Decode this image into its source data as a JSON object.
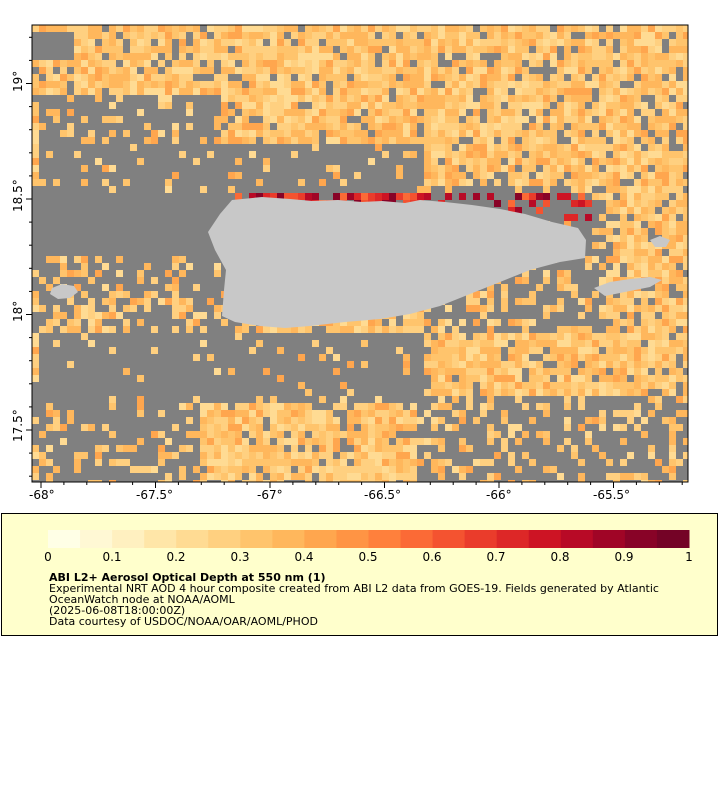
{
  "map": {
    "lon_range": [
      -68.05,
      -65.2
    ],
    "lat_range": [
      17.2,
      19.25
    ],
    "lon_ticks": [
      "-68°",
      "-67.5°",
      "-67°",
      "-66.5°",
      "-66°",
      "-65.5°"
    ],
    "lat_ticks": [
      "17.5°",
      "18°",
      "18.5°",
      "19°"
    ],
    "land_color": "#c8c8c8",
    "nodata_color": "#808080"
  },
  "colorbar": {
    "tick_labels": [
      "0",
      "0.1",
      "0.2",
      "0.3",
      "0.4",
      "0.5",
      "0.6",
      "0.7",
      "0.8",
      "0.9",
      "1"
    ],
    "colors": [
      "#ffffe6",
      "#fff8d4",
      "#fff0c0",
      "#ffe6a8",
      "#ffdb93",
      "#ffd080",
      "#ffc46c",
      "#ffb75c",
      "#ffa64e",
      "#ff9444",
      "#ff803c",
      "#fb6a36",
      "#f45330",
      "#ea3c2b",
      "#dd2727",
      "#cd1424",
      "#b80a26",
      "#a00526",
      "#880327",
      "#740326"
    ]
  },
  "caption": {
    "title": "ABI L2+ Aerosol Optical Depth at 550 nm (1)",
    "line1": "Experimental NRT AOD 4 hour composite created from ABI L2 data from GOES-19. Fields generated by Atlantic",
    "line2": "OceanWatch node at NOAA/AOML",
    "line3": "(2025-06-08T18:00:00Z)",
    "line4": "Data courtesy of USDOC/NOAA/OAR/AOML/PHOD"
  }
}
